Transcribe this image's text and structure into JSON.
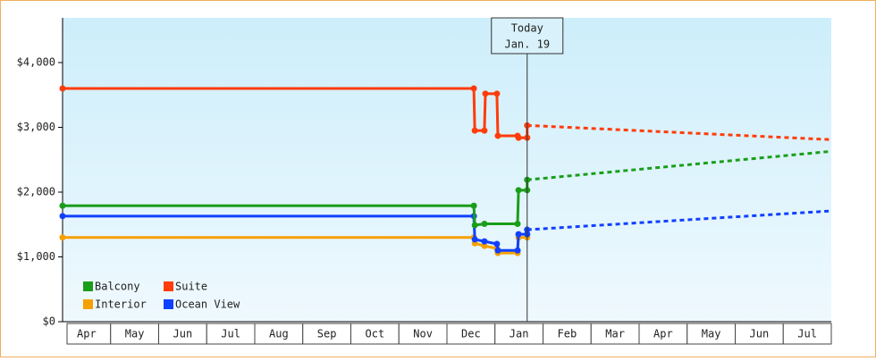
{
  "chart_data": {
    "type": "line",
    "xlim": [
      0,
      16
    ],
    "xticks": [
      {
        "value": 0.5,
        "label": "Apr"
      },
      {
        "value": 1.5,
        "label": "May"
      },
      {
        "value": 2.5,
        "label": "Jun"
      },
      {
        "value": 3.5,
        "label": "Jul"
      },
      {
        "value": 4.5,
        "label": "Aug"
      },
      {
        "value": 5.5,
        "label": "Sep"
      },
      {
        "value": 6.5,
        "label": "Oct"
      },
      {
        "value": 7.5,
        "label": "Nov"
      },
      {
        "value": 8.5,
        "label": "Dec"
      },
      {
        "value": 9.5,
        "label": "Jan"
      },
      {
        "value": 10.5,
        "label": "Feb"
      },
      {
        "value": 11.5,
        "label": "Mar"
      },
      {
        "value": 12.5,
        "label": "Apr"
      },
      {
        "value": 13.5,
        "label": "May"
      },
      {
        "value": 14.5,
        "label": "Jun"
      },
      {
        "value": 15.5,
        "label": "Jul"
      }
    ],
    "ylim": [
      0,
      4690
    ],
    "yticks": [
      {
        "value": 0,
        "label": "$0"
      },
      {
        "value": 1000,
        "label": "$1,000"
      },
      {
        "value": 2000,
        "label": "$2,000"
      },
      {
        "value": 3000,
        "label": "$3,000"
      },
      {
        "value": 4000,
        "label": "$4,000"
      }
    ],
    "today": {
      "x": 9.67,
      "label": "Today",
      "date": "Jan. 19"
    },
    "series": [
      {
        "name": "Interior",
        "color": "#f5a000",
        "x": [
          0,
          8.56,
          8.58,
          8.78,
          9.04,
          9.06,
          9.47,
          9.49,
          9.67
        ],
        "values": [
          1300,
          1300,
          1210,
          1170,
          1130,
          1060,
          1060,
          1300,
          1300
        ]
      },
      {
        "name": "Ocean View",
        "color": "#1040ff",
        "x": [
          0,
          8.56,
          8.58,
          8.78,
          9.04,
          9.06,
          9.47,
          9.49,
          9.67,
          9.67
        ],
        "values": [
          1630,
          1630,
          1270,
          1240,
          1200,
          1100,
          1100,
          1350,
          1350,
          1420
        ],
        "forecast_x": [
          9.67,
          16
        ],
        "forecast_values": [
          1420,
          1710
        ]
      },
      {
        "name": "Balcony",
        "color": "#1a9e1a",
        "x": [
          0,
          8.56,
          8.58,
          8.78,
          9.47,
          9.49,
          9.67,
          9.67
        ],
        "values": [
          1790,
          1790,
          1490,
          1510,
          1510,
          2030,
          2030,
          2190
        ],
        "forecast_x": [
          9.67,
          16
        ],
        "forecast_values": [
          2190,
          2630
        ]
      },
      {
        "name": "Suite",
        "color": "#ff3c0a",
        "x": [
          0,
          8.56,
          8.58,
          8.78,
          8.8,
          9.04,
          9.06,
          9.47,
          9.49,
          9.67,
          9.67
        ],
        "values": [
          3600,
          3600,
          2950,
          2950,
          3520,
          3520,
          2870,
          2870,
          2840,
          2840,
          3030
        ],
        "forecast_x": [
          9.67,
          16
        ],
        "forecast_values": [
          3030,
          2810
        ]
      }
    ],
    "legend": {
      "position": "lower left",
      "order": [
        2,
        3,
        0,
        1
      ]
    }
  }
}
